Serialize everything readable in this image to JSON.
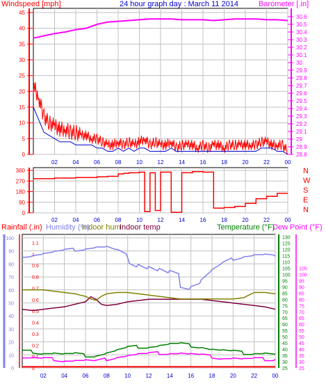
{
  "colors": {
    "wind_speed": "#ff0000",
    "wind_avg": "#0000cc",
    "barometer": "#ff00ff",
    "title": "#0000cc",
    "direction": "#ff0000",
    "rainfall": "#ff0000",
    "humidity": "#8080ee",
    "indoor_hum": "#808000",
    "indoor_temp": "#800040",
    "temperature": "#008000",
    "dew_point": "#ff00ff",
    "grid": "#c0c0c0",
    "axis_left": "#8080ee"
  },
  "chart_data": [
    {
      "type": "line",
      "title": "24 hour graph day : March 11 2014",
      "left_label": "Windspeed [mph]",
      "right_label": "Barometer [.in]",
      "x_tick_labels": [
        "02",
        "04",
        "06",
        "08",
        "10",
        "12",
        "14",
        "16",
        "18",
        "20",
        "22",
        "00"
      ],
      "xlim": [
        0,
        24
      ],
      "left_ticks": [
        "0",
        "5",
        "10",
        "15",
        "20",
        "25",
        "30",
        "35",
        "40",
        "45"
      ],
      "ylim_left": [
        0,
        45
      ],
      "right_ticks": [
        "28.8",
        "28.9",
        "29",
        "29.1",
        "29.2",
        "29.3",
        "29.4",
        "29.5",
        "29.6",
        "29.7",
        "29.8",
        "29.9",
        "30",
        "30.1",
        "30.2",
        "30.3",
        "30.4",
        "30.5",
        "30.6"
      ],
      "ylim_right": [
        28.8,
        30.6
      ],
      "series": [
        {
          "key": "wind_gust",
          "x": [
            0,
            0.5,
            1,
            1.5,
            2,
            2.5,
            3,
            3.5,
            4,
            4.5,
            5,
            5.5,
            6,
            6.5,
            7,
            7.5,
            8,
            8.5,
            9,
            9.5,
            10,
            10.5,
            11,
            11.5,
            12,
            12.5,
            13,
            13.5,
            14,
            14.5,
            15,
            15.5,
            16,
            16.5,
            17,
            17.5,
            18,
            18.5,
            19,
            19.5,
            20,
            20.5,
            21,
            21.5,
            22,
            22.5,
            23,
            23.5,
            24
          ],
          "y": [
            22,
            18,
            12,
            10,
            9,
            8,
            8,
            7,
            7,
            6,
            6,
            5,
            5,
            4,
            3,
            3,
            4,
            3,
            4,
            3,
            4,
            5,
            3,
            4,
            3,
            3,
            4,
            2,
            3,
            3,
            3,
            2,
            3,
            2,
            3,
            3,
            2,
            3,
            3,
            3,
            3,
            3,
            3,
            4,
            4,
            3,
            3,
            3,
            1
          ]
        },
        {
          "key": "wind_avg",
          "x": [
            0,
            0.5,
            1,
            1.5,
            2,
            2.5,
            3,
            3.5,
            4,
            4.5,
            5,
            5.5,
            6,
            6.5,
            7,
            7.5,
            8,
            8.5,
            9,
            9.5,
            10,
            10.5,
            11,
            11.5,
            12,
            12.5,
            13,
            13.5,
            14,
            14.5,
            15,
            15.5,
            16,
            16.5,
            17,
            17.5,
            18,
            18.5,
            19,
            19.5,
            20,
            20.5,
            21,
            21.5,
            22,
            22.5,
            23,
            23.5,
            24
          ],
          "y": [
            15,
            11,
            7,
            6,
            5,
            4,
            4,
            4,
            3,
            3,
            3,
            3,
            2,
            2,
            1,
            1,
            2,
            1,
            2,
            1,
            2,
            2,
            1,
            1,
            1,
            1,
            2,
            1,
            1,
            1,
            1,
            1,
            1,
            1,
            1,
            1,
            1,
            1,
            1,
            1,
            1,
            1,
            1,
            2,
            2,
            2,
            1,
            1,
            0
          ]
        },
        {
          "key": "barometer",
          "x": [
            0,
            1,
            2,
            3,
            4,
            5,
            6,
            7,
            8,
            9,
            10,
            11,
            12,
            13,
            14,
            15,
            16,
            17,
            18,
            19,
            20,
            21,
            22,
            23,
            24
          ],
          "y": [
            30.32,
            30.35,
            30.38,
            30.4,
            30.43,
            30.45,
            30.5,
            30.53,
            30.54,
            30.55,
            30.56,
            30.57,
            30.57,
            30.57,
            30.56,
            30.56,
            30.56,
            30.55,
            30.56,
            30.57,
            30.57,
            30.57,
            30.56,
            30.56,
            30.55
          ]
        }
      ]
    },
    {
      "type": "line",
      "left_ticks": [
        "0",
        "90",
        "180",
        "270",
        "360"
      ],
      "ylim": [
        0,
        360
      ],
      "direction_labels": [
        "N",
        "W",
        "S",
        "E",
        "N"
      ],
      "series": [
        {
          "key": "wind_dir",
          "x": [
            0,
            2,
            4,
            6,
            7,
            8,
            8.5,
            9,
            10,
            10.5,
            11,
            11.5,
            12,
            13,
            14,
            15,
            16,
            17,
            17.5,
            18,
            19,
            20,
            21,
            22,
            23,
            24
          ],
          "y": [
            290,
            295,
            300,
            305,
            310,
            330,
            335,
            340,
            345,
            10,
            340,
            20,
            345,
            5,
            340,
            350,
            345,
            40,
            40,
            45,
            55,
            80,
            120,
            140,
            165,
            165
          ]
        }
      ]
    },
    {
      "type": "line",
      "left_label_rain": "Rainfall (.in)",
      "left_label_humidity": "Humidity (%)",
      "label_indoor_hum": "Indoor hum",
      "label_indoor_temp": "Indoor temp",
      "label_temperature": "Temperature (°F)",
      "label_dew_point": "Dew Point (°F)",
      "humidity_ticks": [
        "0",
        "10",
        "20",
        "30",
        "40",
        "50",
        "60",
        "70",
        "80",
        "90",
        "100"
      ],
      "rain_ticks": [
        "0",
        "0.1",
        "0.2",
        "0.3",
        "0.4",
        "0.5",
        "0.6",
        "0.7",
        "0.8",
        "0.9",
        "1",
        "1.1"
      ],
      "temp_ticks": [
        "25",
        "30",
        "35",
        "40",
        "45",
        "50",
        "55",
        "60",
        "65",
        "70",
        "75",
        "80",
        "85",
        "90",
        "95",
        "100",
        "105",
        "110",
        "115",
        "120",
        "125",
        "130"
      ],
      "dew_ticks": [
        "25",
        "30",
        "35",
        "40",
        "45",
        "50",
        "55",
        "60",
        "65",
        "70",
        "75",
        "80",
        "85",
        "90",
        "95",
        "100",
        "105"
      ],
      "ylim_temp": [
        25,
        132
      ],
      "series": [
        {
          "key": "humidity",
          "x": [
            0,
            1,
            2,
            3,
            4,
            5,
            6,
            7,
            8,
            9,
            10,
            11,
            12,
            13,
            14,
            15,
            16,
            17,
            18,
            19,
            20,
            21,
            22,
            23,
            24
          ],
          "y": [
            86,
            87,
            88,
            89,
            90,
            91,
            92,
            93,
            93,
            90,
            86,
            82,
            78,
            74,
            70,
            67,
            65,
            68,
            75,
            80,
            84,
            86,
            87,
            87,
            86
          ]
        },
        {
          "key": "indoor_temp",
          "x": [
            0,
            1,
            2,
            3,
            4,
            5,
            6,
            6.5,
            7,
            7.5,
            8,
            9,
            10,
            11,
            12,
            13,
            14,
            15,
            16,
            17,
            18,
            19,
            20,
            21,
            22,
            23,
            24
          ],
          "y": [
            72,
            71,
            72,
            73,
            74,
            76,
            78,
            82,
            80,
            76,
            75,
            76,
            78,
            79,
            80,
            80,
            80,
            80,
            80,
            80,
            79,
            78,
            77,
            76,
            75,
            74,
            72
          ]
        },
        {
          "key": "indoor_hum",
          "x": [
            0,
            1,
            2,
            3,
            4,
            5,
            6,
            6.5,
            7,
            7.5,
            8,
            9,
            10,
            11,
            12,
            13,
            14,
            15,
            16,
            17,
            18,
            19,
            20,
            21,
            22,
            23,
            24
          ],
          "y": [
            60,
            60,
            60,
            59,
            58,
            57,
            55,
            53,
            52,
            55,
            57,
            58,
            58,
            57,
            56,
            55,
            54,
            53,
            53,
            53,
            53,
            53,
            53,
            54,
            58,
            58,
            57
          ]
        },
        {
          "key": "temperature",
          "x": [
            0,
            1,
            2,
            3,
            4,
            5,
            6,
            7,
            8,
            9,
            10,
            11,
            12,
            13,
            14,
            15,
            16,
            17,
            18,
            19,
            20,
            21,
            22,
            23,
            24
          ],
          "y": [
            38,
            38,
            37,
            37,
            36,
            36,
            35,
            35,
            37,
            39,
            41,
            42,
            42,
            43,
            44,
            44,
            43,
            42,
            40,
            39,
            38,
            37,
            37,
            37,
            36
          ]
        },
        {
          "key": "dew_point",
          "x": [
            0,
            1,
            2,
            3,
            4,
            5,
            6,
            7,
            8,
            9,
            10,
            11,
            12,
            13,
            14,
            15,
            16,
            17,
            18,
            19,
            20,
            21,
            22,
            23,
            24
          ],
          "y": [
            33,
            33,
            32,
            32,
            31,
            31,
            31,
            30,
            32,
            34,
            35,
            36,
            36,
            37,
            37,
            37,
            36,
            35,
            34,
            33,
            33,
            32,
            32,
            32,
            32
          ]
        },
        {
          "key": "rainfall",
          "x": [
            0,
            24
          ],
          "y": [
            0.01,
            0.01
          ]
        }
      ]
    }
  ]
}
